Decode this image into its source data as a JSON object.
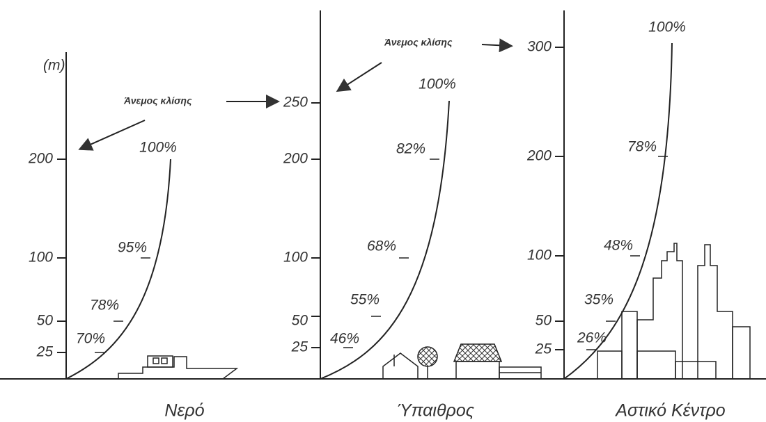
{
  "panels": [
    {
      "caption": "Νερό",
      "unit": "(m)",
      "ticks": [
        "25",
        "50",
        "100",
        "200"
      ],
      "percents": [
        "70%",
        "78%",
        "95%",
        "100%"
      ],
      "annotation": "Άνεμος κλίσης"
    },
    {
      "caption": "Ύπαιθρος",
      "ticks": [
        "25",
        "50",
        "100",
        "200",
        "250"
      ],
      "percents": [
        "46%",
        "55%",
        "68%",
        "82%",
        "100%"
      ],
      "annotation": "Άνεμος κλίσης"
    },
    {
      "caption": "Αστικό Κέντρο",
      "ticks": [
        "25",
        "50",
        "100",
        "200",
        "300"
      ],
      "percents": [
        "26%",
        "35%",
        "48%",
        "78%",
        "100%"
      ]
    }
  ]
}
